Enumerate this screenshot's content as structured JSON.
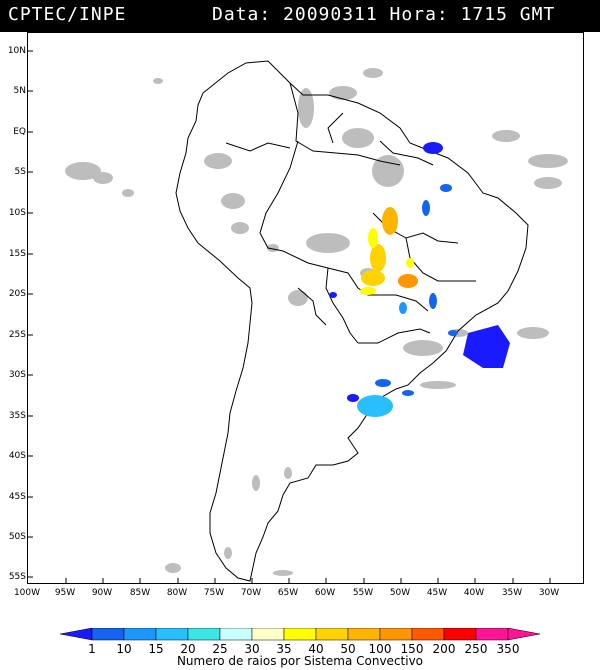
{
  "header": {
    "agency": "CPTEC/INPE",
    "datetime": "Data: 20090311 Hora: 1715 GMT"
  },
  "map": {
    "lat_labels": [
      "10N",
      "5N",
      "EQ",
      "5S",
      "10S",
      "15S",
      "20S",
      "25S",
      "30S",
      "35S",
      "40S",
      "45S",
      "50S",
      "55S"
    ],
    "lon_labels": [
      "100W",
      "95W",
      "90W",
      "85W",
      "80W",
      "75W",
      "70W",
      "65W",
      "60W",
      "55W",
      "50W",
      "45W",
      "40W",
      "35W",
      "30W"
    ]
  },
  "legend": {
    "title": "Numero de raios por Sistema Convectivo",
    "labels": [
      "1",
      "10",
      "15",
      "20",
      "25",
      "30",
      "35",
      "40",
      "50",
      "100",
      "150",
      "200",
      "250",
      "350"
    ],
    "colors": [
      "#1a1aff",
      "#1464f0",
      "#1e96ff",
      "#28beff",
      "#3ce6e6",
      "#c8ffff",
      "#ffffc8",
      "#ffff00",
      "#ffd200",
      "#ffb400",
      "#ff9600",
      "#ff5a00",
      "#ff0000",
      "#ff1493"
    ]
  }
}
